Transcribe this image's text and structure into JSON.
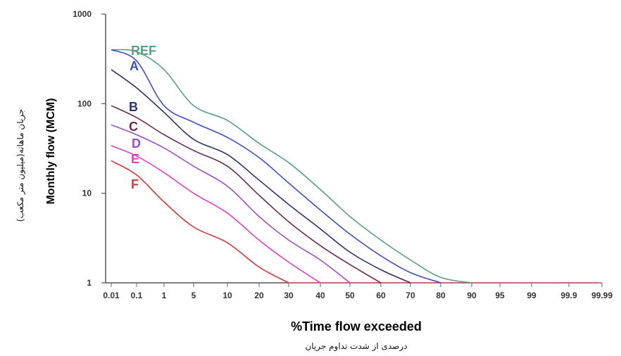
{
  "chart_data": {
    "type": "line",
    "x_axis": {
      "label": "%Time flow exceeded",
      "label_fa": "درصدی از شدت تداوم جریان",
      "ticks": [
        "0.01",
        "0.1",
        "1",
        "5",
        "10",
        "20",
        "30",
        "40",
        "50",
        "60",
        "70",
        "80",
        "90",
        "95",
        "99",
        "99.9",
        "99.99"
      ],
      "scale": "normal-probability"
    },
    "y_axis": {
      "label": "Monthly flow (MCM)",
      "label_fa": "جریان ماهانه(میلیون متر مکعب)",
      "scale": "log",
      "ylim": [
        1,
        1000
      ],
      "ticks": [
        "1",
        "10",
        "100",
        "1000"
      ]
    },
    "series": [
      {
        "name": "REF",
        "color": "#5a9e84",
        "points": [
          [
            "0.01",
            400
          ],
          [
            "0.1",
            380
          ],
          [
            "1",
            240
          ],
          [
            "5",
            95
          ],
          [
            "10",
            65
          ],
          [
            "20",
            36
          ],
          [
            "30",
            22
          ],
          [
            "40",
            11
          ],
          [
            "50",
            5.5
          ],
          [
            "60",
            3
          ],
          [
            "70",
            1.8
          ],
          [
            "80",
            1.15
          ],
          [
            "90",
            1
          ]
        ]
      },
      {
        "name": "A",
        "color": "#3e4fc4",
        "points": [
          [
            "0.01",
            400
          ],
          [
            "0.1",
            300
          ],
          [
            "1",
            95
          ],
          [
            "5",
            62
          ],
          [
            "10",
            42
          ],
          [
            "20",
            25
          ],
          [
            "30",
            13
          ],
          [
            "40",
            6.5
          ],
          [
            "50",
            3.5
          ],
          [
            "60",
            2
          ],
          [
            "70",
            1.3
          ],
          [
            "80",
            1
          ]
        ]
      },
      {
        "name": "B",
        "color": "#2f2f6e",
        "points": [
          [
            "0.01",
            240
          ],
          [
            "0.1",
            150
          ],
          [
            "1",
            80
          ],
          [
            "5",
            40
          ],
          [
            "10",
            27
          ],
          [
            "20",
            14
          ],
          [
            "30",
            7.5
          ],
          [
            "40",
            4
          ],
          [
            "50",
            2.2
          ],
          [
            "60",
            1.4
          ],
          [
            "70",
            1
          ]
        ]
      },
      {
        "name": "C",
        "color": "#6b2a4e",
        "points": [
          [
            "0.01",
            95
          ],
          [
            "0.1",
            70
          ],
          [
            "1",
            45
          ],
          [
            "5",
            30
          ],
          [
            "10",
            20
          ],
          [
            "20",
            9.5
          ],
          [
            "30",
            4.8
          ],
          [
            "40",
            2.6
          ],
          [
            "50",
            1.6
          ],
          [
            "60",
            1
          ]
        ]
      },
      {
        "name": "D",
        "color": "#9b4fc4",
        "points": [
          [
            "0.01",
            58
          ],
          [
            "0.1",
            45
          ],
          [
            "1",
            32
          ],
          [
            "5",
            20
          ],
          [
            "10",
            12
          ],
          [
            "20",
            5.5
          ],
          [
            "30",
            3
          ],
          [
            "40",
            1.8
          ],
          [
            "50",
            1
          ]
        ]
      },
      {
        "name": "E",
        "color": "#e040c8",
        "points": [
          [
            "0.01",
            34
          ],
          [
            "0.1",
            26
          ],
          [
            "1",
            17
          ],
          [
            "5",
            10
          ],
          [
            "10",
            6
          ],
          [
            "20",
            3
          ],
          [
            "30",
            1.7
          ],
          [
            "40",
            1
          ]
        ]
      },
      {
        "name": "F",
        "color": "#d03a3a",
        "points": [
          [
            "0.01",
            23
          ],
          [
            "0.1",
            16
          ],
          [
            "1",
            8
          ],
          [
            "5",
            4.2
          ],
          [
            "10",
            2.8
          ],
          [
            "20",
            1.5
          ],
          [
            "30",
            1
          ]
        ]
      }
    ],
    "baseline_color": "#e0506a",
    "baseline_value": 1
  }
}
